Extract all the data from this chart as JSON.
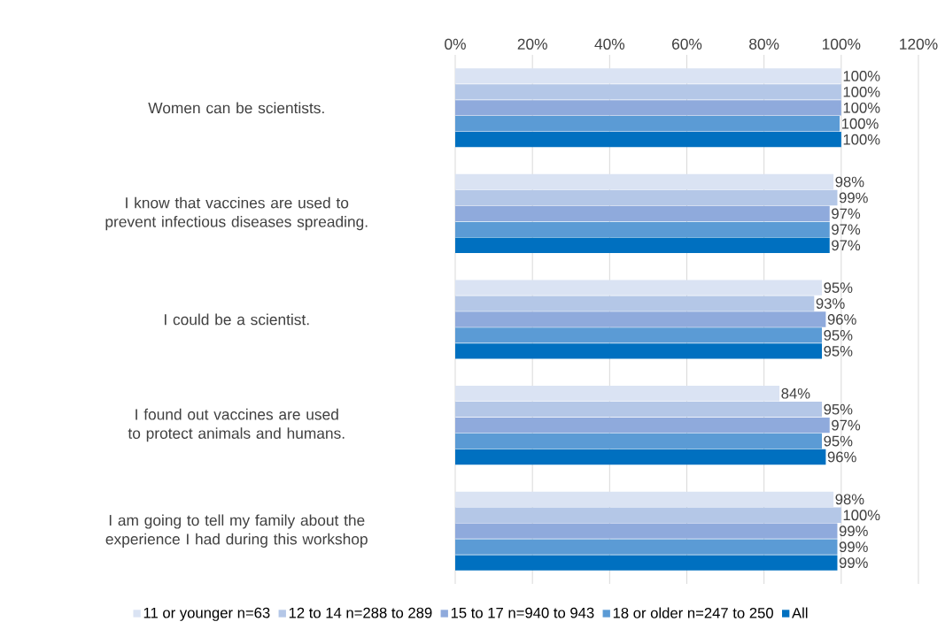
{
  "chart_data": {
    "type": "bar",
    "orientation": "horizontal",
    "categories": [
      "Women can be scientists.",
      "I know that vaccines are used to prevent infectious diseases spreading.",
      "I could be a scientist.",
      "I found out vaccines are used to protect animals and humans.",
      "I am going to tell my family about the experience I had during this workshop"
    ],
    "series": [
      {
        "name": "11 or younger n=63",
        "color": "#dae3f3",
        "values": [
          100,
          98,
          95,
          84,
          98
        ],
        "value_labels": [
          "100%",
          "98%",
          "95%",
          "84%",
          "98%"
        ]
      },
      {
        "name": "12 to 14 n=288 to 289",
        "color": "#b4c7e7",
        "values": [
          100,
          99,
          93,
          95,
          100
        ],
        "value_labels": [
          "100%",
          "99%",
          "93%",
          "95%",
          "100%"
        ]
      },
      {
        "name": "15 to 17 n=940 to 943",
        "color": "#8faadc",
        "values": [
          100,
          97,
          96,
          97,
          99
        ],
        "value_labels": [
          "100%",
          "97%",
          "96%",
          "97%",
          "99%"
        ]
      },
      {
        "name": "18 or older n=247 to 250",
        "color": "#5b9bd5",
        "values": [
          99.6,
          97,
          95,
          95,
          99
        ],
        "value_labels": [
          "100%",
          "97%",
          "95%",
          "95%",
          "99%"
        ]
      },
      {
        "name": "All",
        "color": "#0070c0",
        "values": [
          100,
          97,
          95,
          96,
          99
        ],
        "value_labels": [
          "100%",
          "97%",
          "95%",
          "96%",
          "99%"
        ]
      }
    ],
    "xlim": [
      0,
      120
    ],
    "xticks": [
      {
        "value": 0,
        "label": "0%"
      },
      {
        "value": 20,
        "label": "20%"
      },
      {
        "value": 40,
        "label": "40%"
      },
      {
        "value": 60,
        "label": "60%"
      },
      {
        "value": 80,
        "label": "80%"
      },
      {
        "value": 100,
        "label": "100%"
      },
      {
        "value": 120,
        "label": "120%"
      }
    ],
    "grid": "x",
    "legend": "bottom"
  }
}
